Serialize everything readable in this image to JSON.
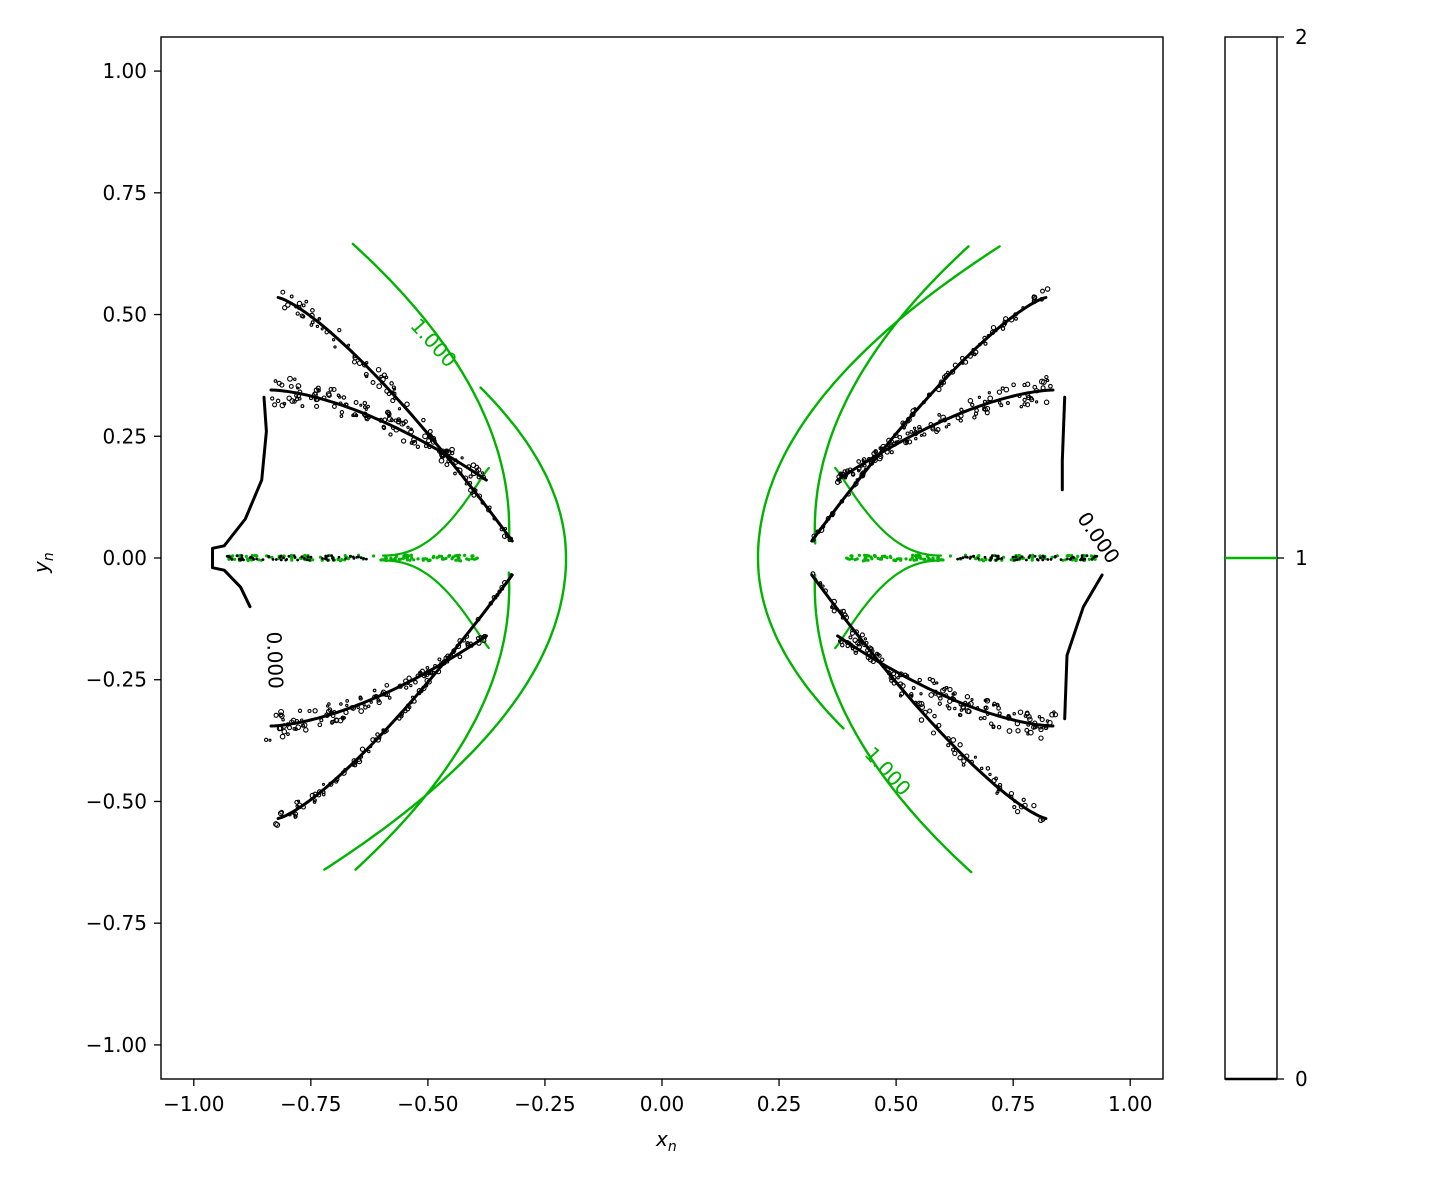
{
  "chart_data": {
    "type": "contour",
    "xlabel": "x",
    "xlabel_sub": "n",
    "ylabel": "y",
    "ylabel_sub": "n",
    "xlim": [
      -1.07,
      1.07
    ],
    "ylim": [
      -1.07,
      1.07
    ],
    "x_ticks": [
      -1.0,
      -0.75,
      -0.5,
      -0.25,
      0.0,
      0.25,
      0.5,
      0.75,
      1.0
    ],
    "x_tick_labels": [
      "−1.00",
      "−0.75",
      "−0.50",
      "−0.25",
      "0.00",
      "0.25",
      "0.50",
      "0.75",
      "1.00"
    ],
    "y_ticks": [
      1.0,
      0.75,
      0.5,
      0.25,
      0.0,
      -0.25,
      -0.5,
      -0.75,
      -1.0
    ],
    "y_tick_labels": [
      "1.00",
      "0.75",
      "0.50",
      "0.25",
      "0.00",
      "−0.25",
      "−0.50",
      "−0.75",
      "−1.00"
    ],
    "grid": false,
    "colors": {
      "level_0": "#000000",
      "level_1": "#00b300"
    },
    "contour_labels": [
      {
        "text": "1.000",
        "color": "#00b300",
        "x": -0.49,
        "y": 0.44,
        "rotation": 48
      },
      {
        "text": "1.000",
        "color": "#00b300",
        "x": 0.48,
        "y": -0.44,
        "rotation": 48
      },
      {
        "text": "0.000",
        "color": "#000000",
        "x": 0.93,
        "y": 0.04,
        "rotation": 55
      },
      {
        "text": "0.000",
        "color": "#000000",
        "x": -0.83,
        "y": -0.21,
        "rotation": 88
      }
    ],
    "colorbar": {
      "range": [
        0,
        2
      ],
      "ticks": [
        0,
        1,
        2
      ],
      "tick_labels": [
        "0",
        "1",
        "2"
      ],
      "line_level": 1,
      "line_color": "#00b300"
    }
  }
}
